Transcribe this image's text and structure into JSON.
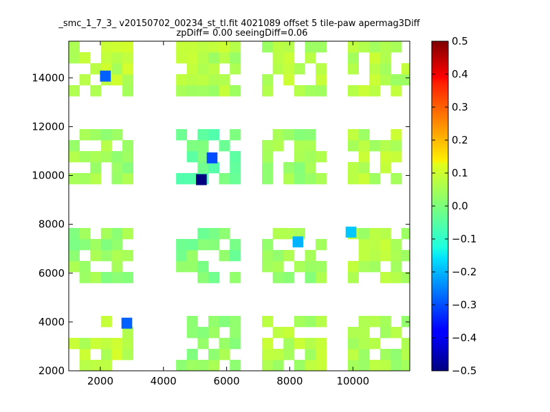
{
  "chart_data": {
    "type": "heatmap",
    "title": "_smc_1_7_3_ v20150702_00234_st_tl.fit 4021089 offset 5 tile-paw apermag3Diff",
    "subtitle": "zpDiff= 0.00 seeingDiff=0.06",
    "xlabel": "",
    "ylabel": "",
    "xlim": [
      1000,
      11800
    ],
    "ylim": [
      2000,
      15500
    ],
    "x_ticks": [
      "2000",
      "4000",
      "6000",
      "8000",
      "10000"
    ],
    "x_tick_values": [
      2000,
      4000,
      6000,
      8000,
      10000
    ],
    "y_ticks": [
      "2000",
      "4000",
      "6000",
      "8000",
      "10000",
      "12000",
      "14000"
    ],
    "y_tick_values": [
      2000,
      4000,
      6000,
      8000,
      10000,
      12000,
      14000
    ],
    "colorbar": {
      "min": -0.5,
      "max": 0.5,
      "tick_labels": [
        "0.5",
        "0.4",
        "0.3",
        "0.2",
        "0.1",
        "0.0",
        "−0.1",
        "−0.2",
        "−0.3",
        "−0.4",
        "−0.5"
      ],
      "tick_values": [
        0.5,
        0.4,
        0.3,
        0.2,
        0.1,
        0.0,
        -0.1,
        -0.2,
        -0.3,
        -0.4,
        -0.5
      ],
      "colormap": "jet"
    },
    "grid": false,
    "cell_size": [
      340,
      450
    ],
    "blocks": [
      {
        "x0": 1000,
        "x1": 3040,
        "y0": 2000,
        "y1": 4250,
        "base": 0.06
      },
      {
        "x0": 4400,
        "x1": 6440,
        "y0": 2000,
        "y1": 4250,
        "base": 0.02
      },
      {
        "x0": 7120,
        "x1": 9160,
        "y0": 2000,
        "y1": 4250,
        "base": 0.05
      },
      {
        "x0": 9840,
        "x1": 11880,
        "y0": 2000,
        "y1": 4250,
        "base": 0.04
      },
      {
        "x0": 1000,
        "x1": 3040,
        "y0": 5600,
        "y1": 7850,
        "base": 0.02
      },
      {
        "x0": 4400,
        "x1": 6440,
        "y0": 5600,
        "y1": 7850,
        "base": 0.0
      },
      {
        "x0": 7120,
        "x1": 9160,
        "y0": 5600,
        "y1": 7850,
        "base": 0.03
      },
      {
        "x0": 9840,
        "x1": 11880,
        "y0": 5600,
        "y1": 7850,
        "base": 0.05
      },
      {
        "x0": 1000,
        "x1": 3040,
        "y0": 9650,
        "y1": 11900,
        "base": 0.03
      },
      {
        "x0": 4400,
        "x1": 6440,
        "y0": 9650,
        "y1": 11900,
        "base": -0.02
      },
      {
        "x0": 7120,
        "x1": 9160,
        "y0": 9650,
        "y1": 11900,
        "base": 0.03
      },
      {
        "x0": 9840,
        "x1": 11880,
        "y0": 9650,
        "y1": 11900,
        "base": 0.05
      },
      {
        "x0": 1000,
        "x1": 3040,
        "y0": 13250,
        "y1": 15500,
        "base": 0.06
      },
      {
        "x0": 4400,
        "x1": 6440,
        "y0": 13250,
        "y1": 15500,
        "base": 0.05
      },
      {
        "x0": 7120,
        "x1": 9160,
        "y0": 13250,
        "y1": 15500,
        "base": 0.05
      },
      {
        "x0": 9840,
        "x1": 11880,
        "y0": 13250,
        "y1": 15500,
        "base": 0.05
      }
    ],
    "outliers": [
      {
        "x": 2160,
        "y": 14070,
        "value": -0.28
      },
      {
        "x": 2840,
        "y": 3950,
        "value": -0.28
      },
      {
        "x": 5540,
        "y": 10720,
        "value": -0.3
      },
      {
        "x": 5200,
        "y": 9830,
        "value": -0.5
      },
      {
        "x": 8260,
        "y": 7280,
        "value": -0.2
      },
      {
        "x": 9940,
        "y": 7680,
        "value": -0.18
      }
    ]
  }
}
